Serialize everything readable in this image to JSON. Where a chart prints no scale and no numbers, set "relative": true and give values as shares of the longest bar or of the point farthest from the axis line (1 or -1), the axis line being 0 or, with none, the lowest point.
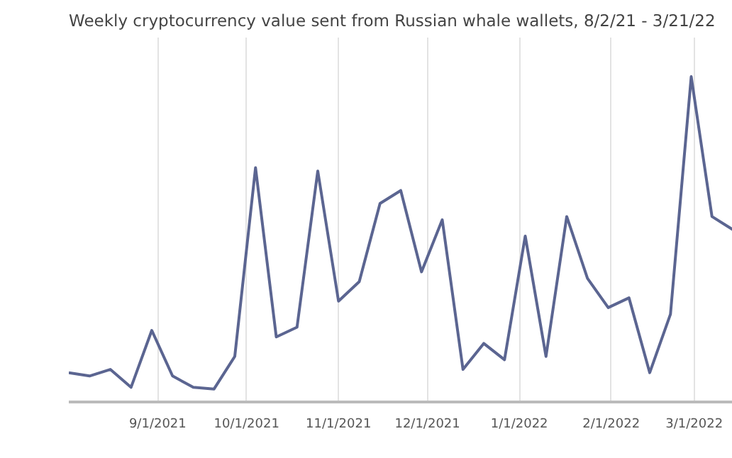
{
  "chart_data": {
    "type": "line",
    "title": "Weekly cryptocurrency value sent from Russian whale wallets, 8/2/21 - 3/21/22",
    "relative": true,
    "grid": "x",
    "marker": "none",
    "line_style": "solid",
    "x": [
      "2021-08-02",
      "2021-08-09",
      "2021-08-16",
      "2021-08-23",
      "2021-08-30",
      "2021-09-06",
      "2021-09-13",
      "2021-09-20",
      "2021-09-27",
      "2021-10-04",
      "2021-10-11",
      "2021-10-18",
      "2021-10-25",
      "2021-11-01",
      "2021-11-08",
      "2021-11-15",
      "2021-11-22",
      "2021-11-29",
      "2021-12-06",
      "2021-12-13",
      "2021-12-20",
      "2021-12-27",
      "2022-01-03",
      "2022-01-10",
      "2022-01-17",
      "2022-01-24",
      "2022-01-31",
      "2022-02-07",
      "2022-02-14",
      "2022-02-21",
      "2022-02-28",
      "2022-03-07",
      "2022-03-14"
    ],
    "xlim": [
      "2021-08-02",
      "2022-03-14"
    ],
    "xticks": [
      {
        "value": "2021-09-01",
        "label": "9/1/2021"
      },
      {
        "value": "2021-10-01",
        "label": "10/1/2021"
      },
      {
        "value": "2021-11-01",
        "label": "11/1/2021"
      },
      {
        "value": "2021-12-01",
        "label": "12/1/2021"
      },
      {
        "value": "2022-01-01",
        "label": "1/1/2022"
      },
      {
        "value": "2022-02-01",
        "label": "2/1/2022"
      },
      {
        "value": "2022-03-01",
        "label": "3/1/2022"
      }
    ],
    "series": [
      {
        "color": "#5b6591",
        "values": [
          0.09,
          0.08,
          0.1,
          0.045,
          0.22,
          0.08,
          0.045,
          0.04,
          0.14,
          0.72,
          0.2,
          0.23,
          0.71,
          0.31,
          0.37,
          0.61,
          0.65,
          0.4,
          0.56,
          0.1,
          0.18,
          0.13,
          0.51,
          0.14,
          0.57,
          0.38,
          0.29,
          0.32,
          0.09,
          0.27,
          1,
          0.57,
          0.53
        ]
      }
    ]
  }
}
